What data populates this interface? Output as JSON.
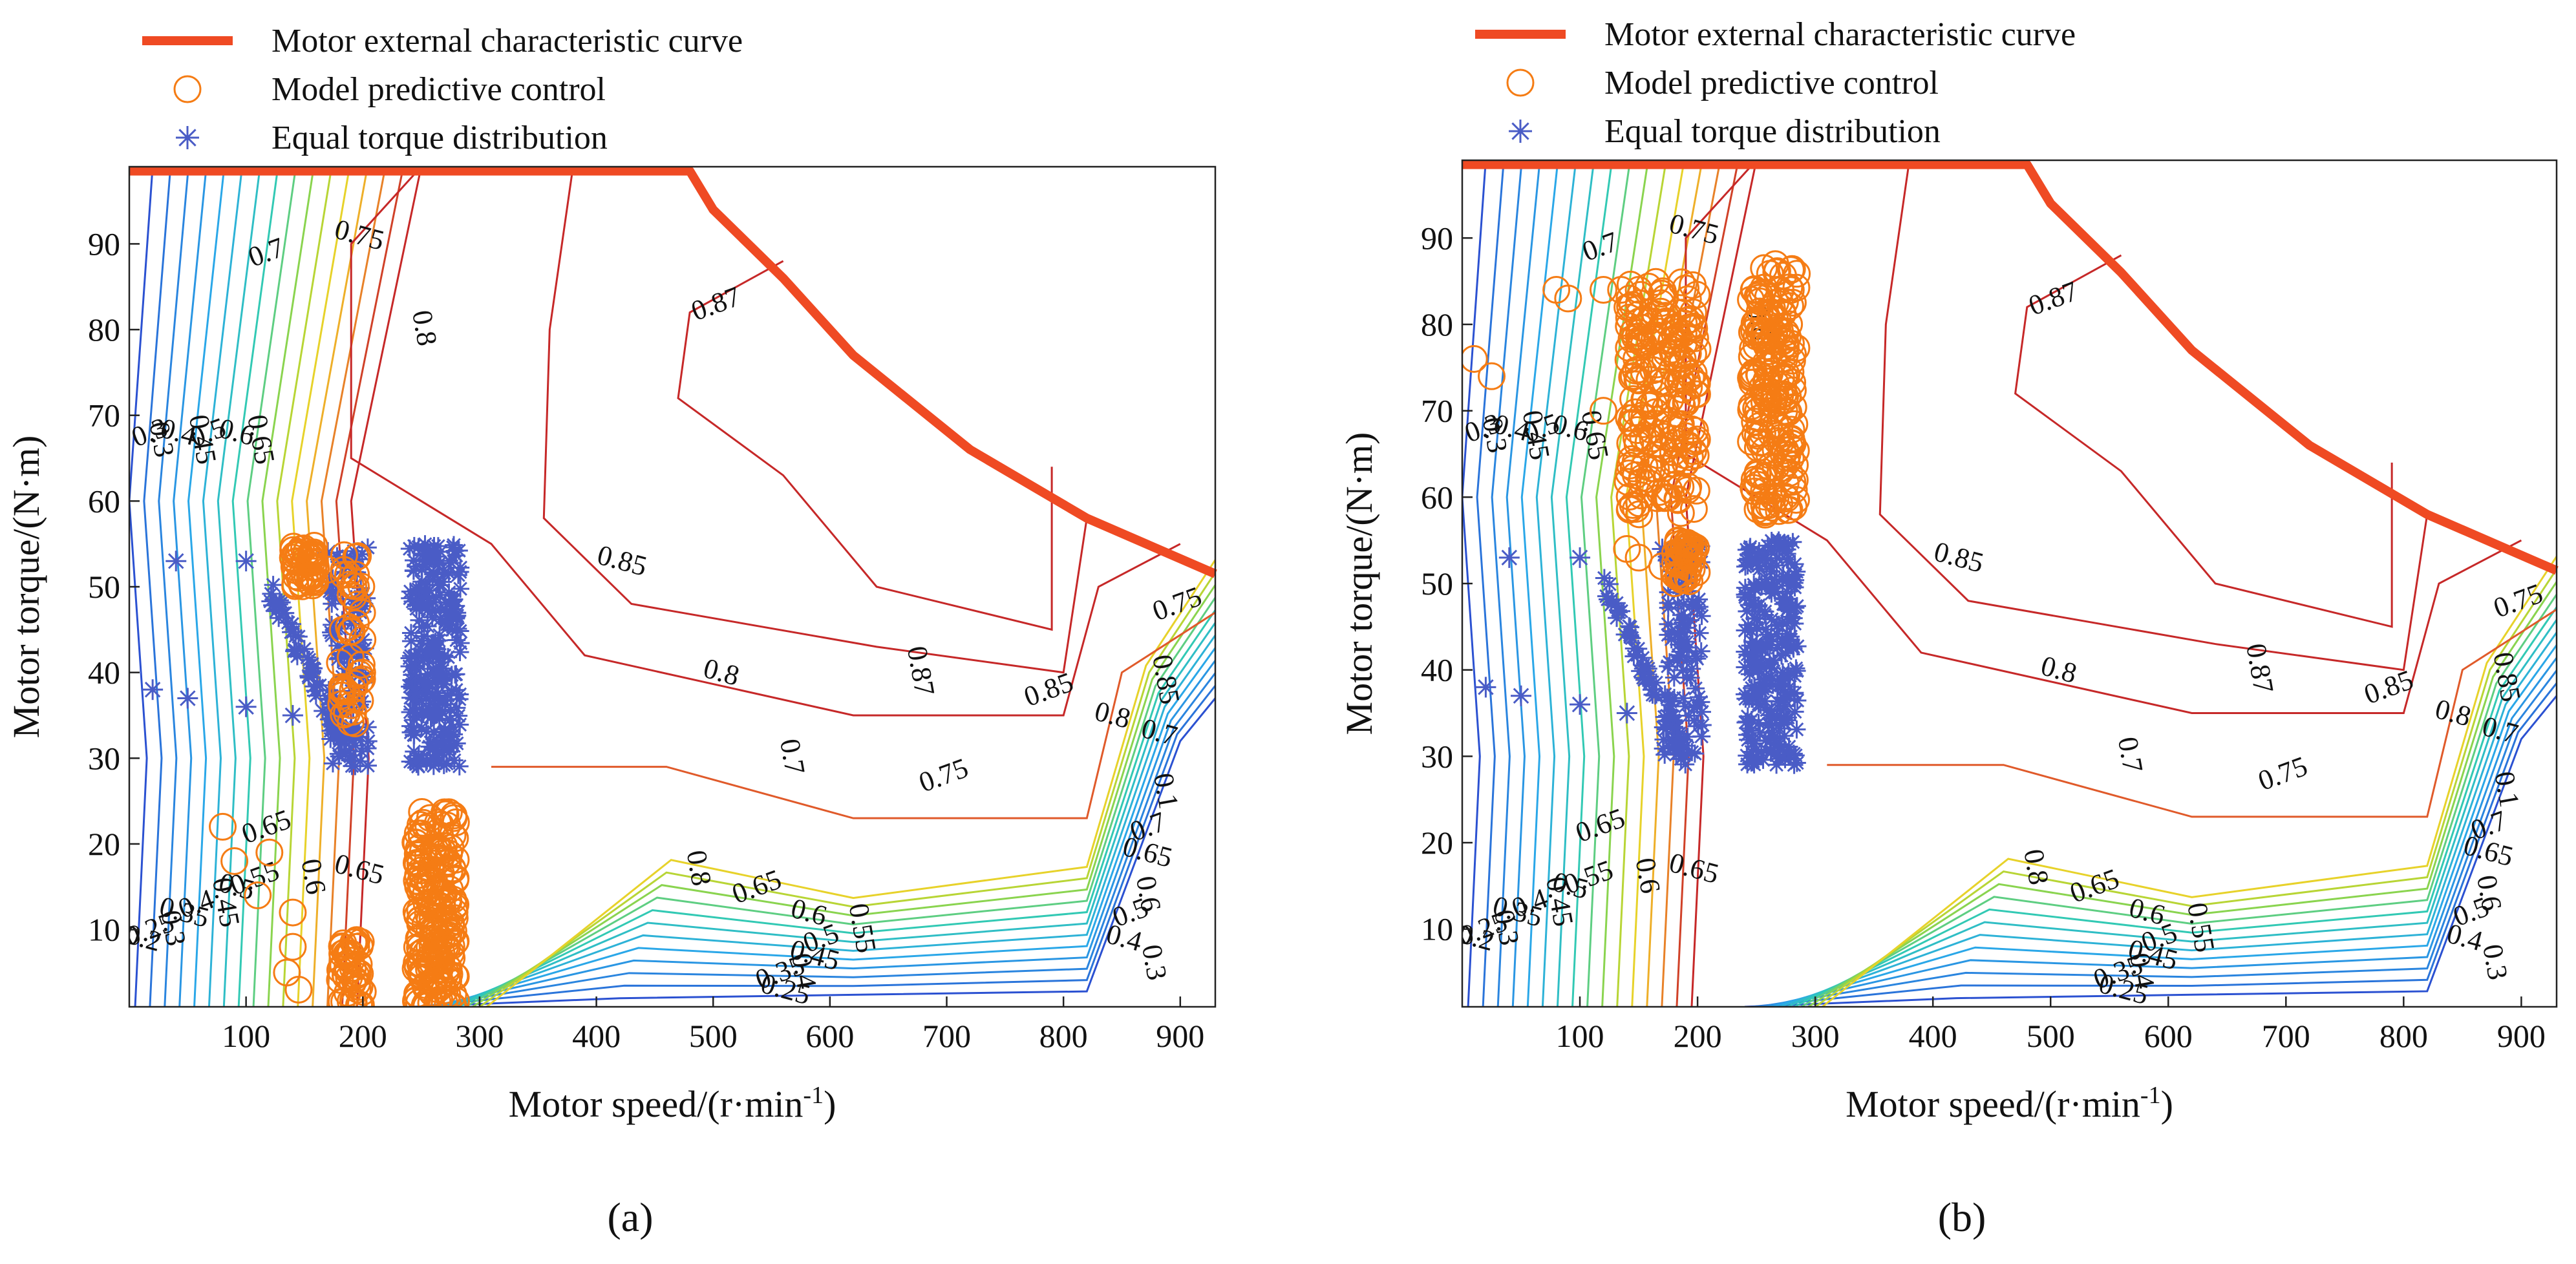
{
  "figure": {
    "panel_labels": [
      "(a)",
      "(b)"
    ]
  },
  "colors": {
    "external_curve": "#ef4a23",
    "mpc": "#f57c14",
    "equal": "#4a5cc6",
    "contour_low": "#3a3fd1",
    "contour_mid": "#d8de2e",
    "contour_high": "#c62828"
  },
  "chart_data": [
    {
      "panel": "(a)",
      "type": "scatter",
      "xlabel": "Motor speed/(r·min",
      "xlabel_sup": "-1",
      "xlabel_end": ")",
      "ylabel": "Motor torque/(N·m)",
      "xlim": [
        0,
        930
      ],
      "ylim": [
        1,
        99
      ],
      "xticks": [
        100,
        200,
        300,
        400,
        500,
        600,
        700,
        800,
        900
      ],
      "yticks": [
        10,
        20,
        30,
        40,
        50,
        60,
        70,
        80,
        90
      ],
      "legend": [
        "Motor external characteristic curve",
        "Model predictive control",
        "Equal torque distribution"
      ],
      "external_curve": [
        [
          0,
          98.5
        ],
        [
          480,
          98.5
        ],
        [
          500,
          94
        ],
        [
          560,
          86
        ],
        [
          620,
          77
        ],
        [
          720,
          66
        ],
        [
          820,
          58
        ],
        [
          930,
          51.5
        ]
      ],
      "contour_labels": [
        "0.3",
        "0.4",
        "0.45",
        "0.5",
        "0.6",
        "0.65",
        "0.7",
        "0.75",
        "0.8",
        "0.87",
        "0.85",
        "0.87",
        "0.85",
        "0.8",
        "0.7",
        "0.75",
        "0.8",
        "0.85",
        "0.75",
        "0.7",
        "0.8",
        "0.65",
        "0.6",
        "0.55",
        "0.5",
        "0.45",
        "0.4",
        "0.35",
        "0.25",
        "0.3",
        "0.65",
        "0.65",
        "0.6",
        "0.55",
        "0.5",
        "0.45",
        "0.4",
        "0.35",
        "0.3",
        "0.25",
        "0.2",
        "0.1",
        "0.7",
        "0.65",
        "0.6",
        "0.5",
        "0.4",
        "0.3"
      ],
      "mpc_clusters": [
        {
          "x": [
            140,
            160
          ],
          "y": [
            50,
            55
          ]
        },
        {
          "x": [
            180,
            200
          ],
          "y": [
            34,
            55
          ]
        },
        {
          "x": [
            245,
            280
          ],
          "y": [
            1,
            24
          ]
        },
        {
          "x": [
            180,
            200
          ],
          "y": [
            1,
            9
          ]
        }
      ],
      "mpc_points": [
        [
          80,
          22
        ],
        [
          120,
          19
        ],
        [
          90,
          18
        ],
        [
          140,
          12
        ],
        [
          140,
          8
        ],
        [
          135,
          5
        ],
        [
          145,
          3
        ],
        [
          110,
          14
        ],
        [
          150,
          53
        ],
        [
          170,
          52
        ]
      ],
      "equal_clusters": [
        {
          "x": [
            240,
            285
          ],
          "y": [
            29,
            55
          ]
        },
        {
          "x": [
            170,
            205
          ],
          "y": [
            29,
            55
          ]
        },
        {
          "x": [
            120,
            190
          ],
          "y": [
            30,
            50
          ]
        }
      ],
      "equal_points": [
        [
          40,
          53
        ],
        [
          100,
          53
        ],
        [
          20,
          38
        ],
        [
          50,
          37
        ],
        [
          100,
          36
        ],
        [
          140,
          35
        ],
        [
          170,
          54
        ]
      ]
    },
    {
      "panel": "(b)",
      "type": "scatter",
      "xlabel": "Motor speed/(r·min",
      "xlabel_sup": "-1",
      "xlabel_end": ")",
      "ylabel": "Motor torque/(N·m)",
      "xlim": [
        0,
        930
      ],
      "ylim": [
        1,
        99
      ],
      "xticks": [
        100,
        200,
        300,
        400,
        500,
        600,
        700,
        800,
        900
      ],
      "yticks": [
        10,
        20,
        30,
        40,
        50,
        60,
        70,
        80,
        90
      ],
      "legend": [
        "Motor external characteristic curve",
        "Model predictive control",
        "Equal torque distribution"
      ],
      "external_curve": [
        [
          0,
          98.5
        ],
        [
          480,
          98.5
        ],
        [
          500,
          94
        ],
        [
          560,
          86
        ],
        [
          620,
          77
        ],
        [
          720,
          66
        ],
        [
          820,
          58
        ],
        [
          930,
          51.5
        ]
      ],
      "contour_labels": [
        "0.3",
        "0.4",
        "0.45",
        "0.5",
        "0.6",
        "0.65",
        "0.7",
        "0.75",
        "0.8",
        "0.87",
        "0.85",
        "0.87",
        "0.85",
        "0.8",
        "0.7",
        "0.75",
        "0.8",
        "0.85",
        "0.75",
        "0.7",
        "0.8",
        "0.65",
        "0.6",
        "0.55",
        "0.5",
        "0.45",
        "0.4",
        "0.35",
        "0.25",
        "0.3",
        "0.65",
        "0.65",
        "0.6",
        "0.55",
        "0.5",
        "0.45",
        "0.4",
        "0.35",
        "0.3",
        "0.25",
        "0.2",
        "0.1",
        "0.7",
        "0.65",
        "0.6",
        "0.5",
        "0.4",
        "0.3"
      ],
      "mpc_clusters": [
        {
          "x": [
            245,
            285
          ],
          "y": [
            57,
            87
          ]
        },
        {
          "x": [
            140,
            200
          ],
          "y": [
            58,
            85
          ]
        },
        {
          "x": [
            180,
            200
          ],
          "y": [
            50,
            55
          ]
        }
      ],
      "mpc_points": [
        [
          10,
          76
        ],
        [
          25,
          74
        ],
        [
          80,
          84
        ],
        [
          90,
          83
        ],
        [
          120,
          84
        ],
        [
          135,
          84
        ],
        [
          150,
          84
        ],
        [
          120,
          70
        ],
        [
          150,
          53
        ],
        [
          170,
          52
        ],
        [
          140,
          54
        ]
      ],
      "equal_clusters": [
        {
          "x": [
            240,
            285
          ],
          "y": [
            29,
            55
          ]
        },
        {
          "x": [
            170,
            205
          ],
          "y": [
            29,
            55
          ]
        },
        {
          "x": [
            120,
            190
          ],
          "y": [
            30,
            50
          ]
        }
      ],
      "equal_points": [
        [
          40,
          53
        ],
        [
          100,
          53
        ],
        [
          20,
          38
        ],
        [
          50,
          37
        ],
        [
          100,
          36
        ],
        [
          140,
          35
        ],
        [
          170,
          54
        ]
      ]
    }
  ]
}
